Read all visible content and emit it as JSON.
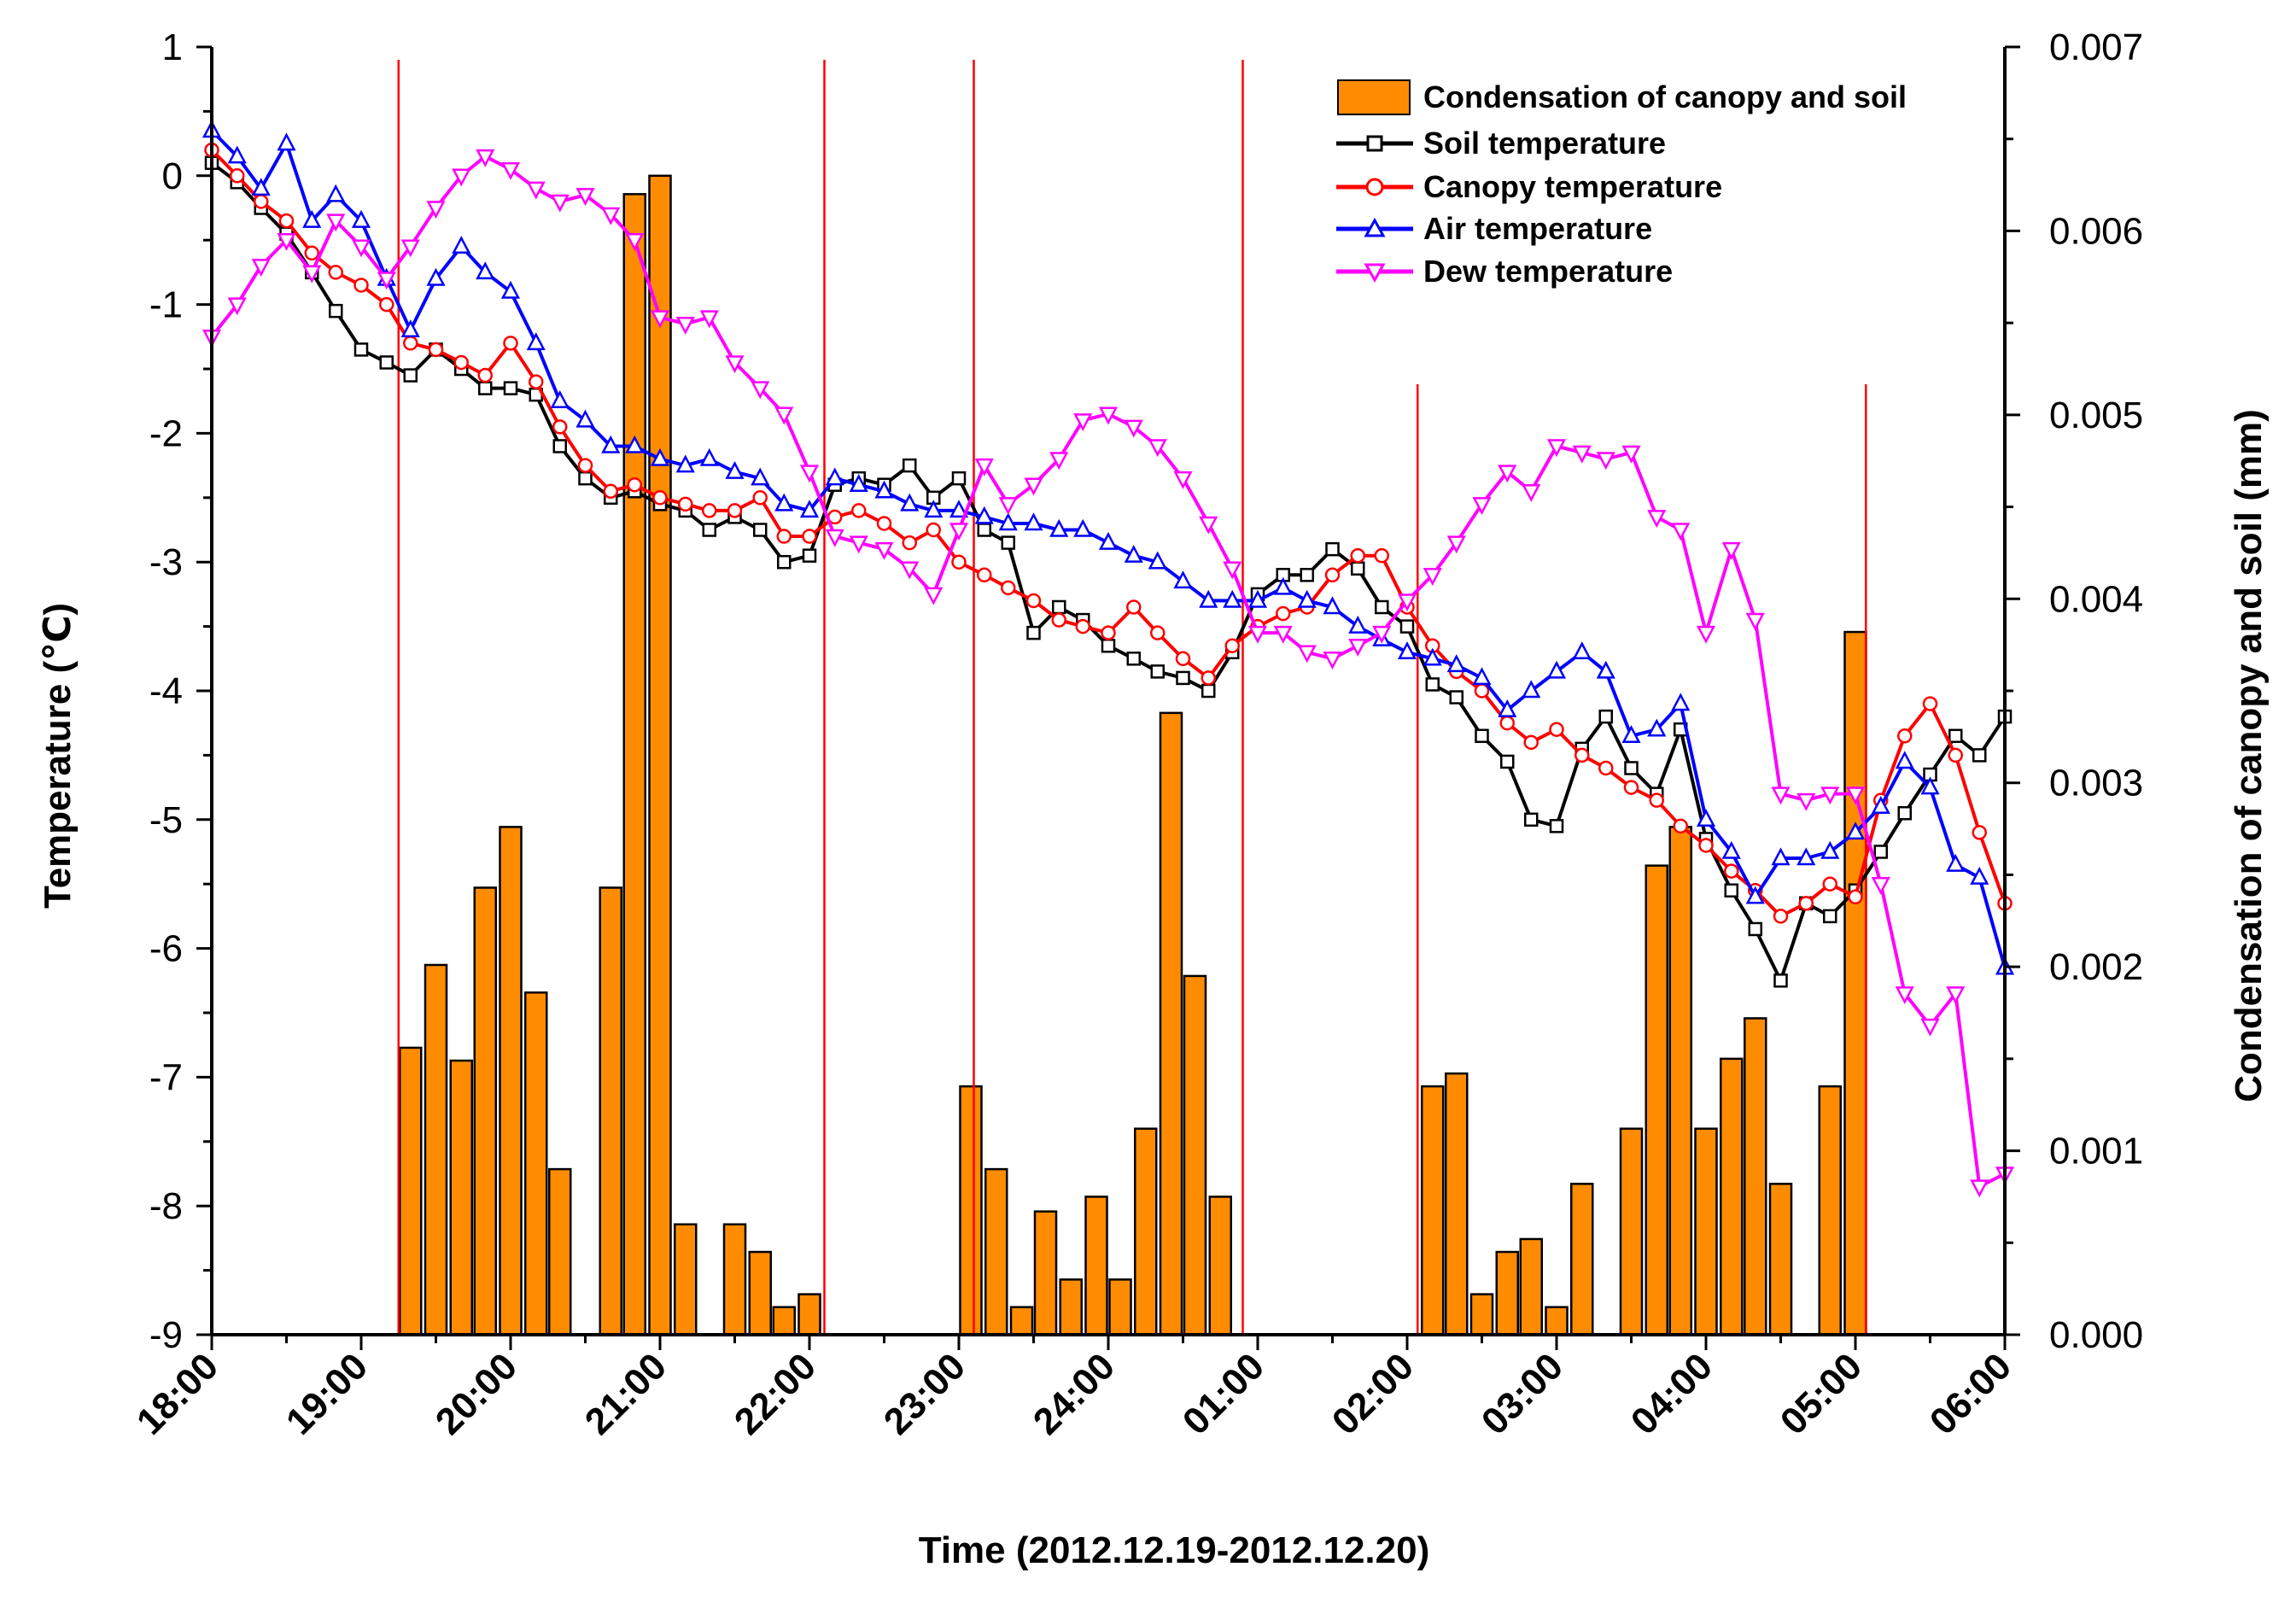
{
  "chart_data": {
    "type": "bar+line",
    "xlabel": "Time (2012.12.19-2012.12.20)",
    "ylabel_left": "Temperature (℃)",
    "ylabel_right": "Condensation of canopy and soil (mm)",
    "x_range_hours": [
      18,
      30
    ],
    "x_ticks": [
      "18:00",
      "19:00",
      "20:00",
      "21:00",
      "22:00",
      "23:00",
      "24:00",
      "01:00",
      "02:00",
      "03:00",
      "04:00",
      "05:00",
      "06:00"
    ],
    "ylim_left": [
      -9,
      1
    ],
    "y_ticks_left": [
      "1",
      "0",
      "-1",
      "-2",
      "-3",
      "-4",
      "-5",
      "-6",
      "-7",
      "-8",
      "-9"
    ],
    "ylim_right": [
      0,
      0.007
    ],
    "y_ticks_right": [
      "0.007",
      "0.006",
      "0.005",
      "0.004",
      "0.003",
      "0.002",
      "0.001",
      "0.000"
    ],
    "vertical_markers_hours": [
      19.25,
      22.1,
      23.1,
      24.9,
      26.07,
      29.07
    ],
    "legend": {
      "position": "top-right",
      "entries": [
        "Condensation of canopy and soil",
        "Soil temperature",
        "Canopy temperature",
        "Air temperature",
        "Dew temperature"
      ]
    },
    "colors": {
      "bar_fill": "#ff8c00",
      "soil": "#000000",
      "canopy": "#ff0000",
      "air": "#0000ff",
      "dew": "#ff00ff",
      "marker_line": "#ff0000"
    },
    "bars": {
      "name": "Condensation of canopy and soil",
      "x": [
        19.33,
        19.5,
        19.67,
        19.83,
        20.0,
        20.17,
        20.33,
        20.67,
        20.83,
        21.0,
        21.17,
        21.5,
        21.67,
        21.83,
        22.0,
        23.08,
        23.25,
        23.42,
        23.58,
        23.75,
        23.92,
        24.08,
        24.25,
        24.42,
        24.58,
        24.75,
        26.17,
        26.33,
        26.5,
        26.67,
        26.83,
        27.0,
        27.17,
        27.5,
        27.67,
        27.83,
        28.0,
        28.17,
        28.33,
        28.5,
        28.83,
        29.0
      ],
      "values": [
        0.00156,
        0.00201,
        0.00149,
        0.00243,
        0.00276,
        0.00186,
        0.0009,
        0.00243,
        0.0062,
        0.0063,
        0.0006,
        0.0006,
        0.00045,
        0.00015,
        0.00022,
        0.00135,
        0.0009,
        0.00015,
        0.00067,
        0.0003,
        0.00075,
        0.0003,
        0.00112,
        0.00338,
        0.00195,
        0.00075,
        0.00135,
        0.00142,
        0.00022,
        0.00045,
        0.00052,
        0.00015,
        0.00082,
        0.00112,
        0.00255,
        0.00276,
        0.00112,
        0.0015,
        0.00172,
        0.00082,
        0.00135,
        0.00382
      ]
    },
    "series": [
      {
        "name": "Soil temperature",
        "x": [
          18.0,
          18.17,
          18.33,
          18.5,
          18.67,
          18.83,
          19.0,
          19.17,
          19.33,
          19.5,
          19.67,
          19.83,
          20.0,
          20.17,
          20.33,
          20.5,
          20.67,
          20.83,
          21.0,
          21.17,
          21.33,
          21.5,
          21.67,
          21.83,
          22.0,
          22.17,
          22.33,
          22.5,
          22.67,
          22.83,
          23.0,
          23.17,
          23.33,
          23.5,
          23.67,
          23.83,
          24.0,
          24.17,
          24.33,
          24.5,
          24.67,
          24.83,
          25.0,
          25.17,
          25.33,
          25.5,
          25.67,
          25.83,
          26.0,
          26.17,
          26.33,
          26.5,
          26.67,
          26.83,
          27.0,
          27.17,
          27.33,
          27.5,
          27.67,
          27.83,
          28.0,
          28.17,
          28.33,
          28.5,
          28.67,
          28.83,
          29.0,
          29.17,
          29.33,
          29.5,
          29.67,
          29.83,
          30.0
        ],
        "values": [
          0.1,
          -0.05,
          -0.25,
          -0.45,
          -0.75,
          -1.05,
          -1.35,
          -1.45,
          -1.55,
          -1.35,
          -1.5,
          -1.65,
          -1.65,
          -1.7,
          -2.1,
          -2.35,
          -2.5,
          -2.45,
          -2.55,
          -2.6,
          -2.75,
          -2.65,
          -2.75,
          -3.0,
          -2.95,
          -2.4,
          -2.35,
          -2.4,
          -2.25,
          -2.5,
          -2.35,
          -2.75,
          -2.85,
          -3.55,
          -3.35,
          -3.45,
          -3.65,
          -3.75,
          -3.85,
          -3.9,
          -4.0,
          -3.7,
          -3.25,
          -3.1,
          -3.1,
          -2.9,
          -3.05,
          -3.35,
          -3.5,
          -3.95,
          -4.05,
          -4.35,
          -4.55,
          -5.0,
          -5.05,
          -4.45,
          -4.2,
          -4.6,
          -4.8,
          -4.3,
          -5.15,
          -5.55,
          -5.85,
          -6.25,
          -5.65,
          -5.75,
          -5.55,
          -5.25,
          -4.95,
          -4.65,
          -4.35,
          -4.5,
          -4.2
        ]
      },
      {
        "name": "Canopy temperature",
        "x": [
          18.0,
          18.17,
          18.33,
          18.5,
          18.67,
          18.83,
          19.0,
          19.17,
          19.33,
          19.5,
          19.67,
          19.83,
          20.0,
          20.17,
          20.33,
          20.5,
          20.67,
          20.83,
          21.0,
          21.17,
          21.33,
          21.5,
          21.67,
          21.83,
          22.0,
          22.17,
          22.33,
          22.5,
          22.67,
          22.83,
          23.0,
          23.17,
          23.33,
          23.5,
          23.67,
          23.83,
          24.0,
          24.17,
          24.33,
          24.5,
          24.67,
          24.83,
          25.0,
          25.17,
          25.33,
          25.5,
          25.67,
          25.83,
          26.0,
          26.17,
          26.33,
          26.5,
          26.67,
          26.83,
          27.0,
          27.17,
          27.33,
          27.5,
          27.67,
          27.83,
          28.0,
          28.17,
          28.33,
          28.5,
          28.67,
          28.83,
          29.0,
          29.17,
          29.33,
          29.5,
          29.67,
          29.83,
          30.0
        ],
        "values": [
          0.2,
          0.0,
          -0.2,
          -0.35,
          -0.6,
          -0.75,
          -0.85,
          -1.0,
          -1.3,
          -1.35,
          -1.45,
          -1.55,
          -1.3,
          -1.6,
          -1.95,
          -2.25,
          -2.45,
          -2.4,
          -2.5,
          -2.55,
          -2.6,
          -2.6,
          -2.5,
          -2.8,
          -2.8,
          -2.65,
          -2.6,
          -2.7,
          -2.85,
          -2.75,
          -3.0,
          -3.1,
          -3.2,
          -3.3,
          -3.45,
          -3.5,
          -3.55,
          -3.35,
          -3.55,
          -3.75,
          -3.9,
          -3.65,
          -3.5,
          -3.4,
          -3.35,
          -3.1,
          -2.95,
          -2.95,
          -3.35,
          -3.65,
          -3.85,
          -4.0,
          -4.25,
          -4.4,
          -4.3,
          -4.5,
          -4.6,
          -4.75,
          -4.85,
          -5.05,
          -5.2,
          -5.4,
          -5.55,
          -5.75,
          -5.65,
          -5.5,
          -5.6,
          -4.85,
          -4.35,
          -4.1,
          -4.5,
          -5.1,
          -5.65
        ]
      },
      {
        "name": "Air temperature",
        "x": [
          18.0,
          18.17,
          18.33,
          18.5,
          18.67,
          18.83,
          19.0,
          19.17,
          19.33,
          19.5,
          19.67,
          19.83,
          20.0,
          20.17,
          20.33,
          20.5,
          20.67,
          20.83,
          21.0,
          21.17,
          21.33,
          21.5,
          21.67,
          21.83,
          22.0,
          22.17,
          22.33,
          22.5,
          22.67,
          22.83,
          23.0,
          23.17,
          23.33,
          23.5,
          23.67,
          23.83,
          24.0,
          24.17,
          24.33,
          24.5,
          24.67,
          24.83,
          25.0,
          25.17,
          25.33,
          25.5,
          25.67,
          25.83,
          26.0,
          26.17,
          26.33,
          26.5,
          26.67,
          26.83,
          27.0,
          27.17,
          27.33,
          27.5,
          27.67,
          27.83,
          28.0,
          28.17,
          28.33,
          28.5,
          28.67,
          28.83,
          29.0,
          29.17,
          29.33,
          29.5,
          29.67,
          29.83,
          30.0
        ],
        "values": [
          0.35,
          0.15,
          -0.1,
          0.25,
          -0.35,
          -0.15,
          -0.35,
          -0.8,
          -1.2,
          -0.8,
          -0.55,
          -0.75,
          -0.9,
          -1.3,
          -1.75,
          -1.9,
          -2.1,
          -2.1,
          -2.2,
          -2.25,
          -2.2,
          -2.3,
          -2.35,
          -2.55,
          -2.6,
          -2.35,
          -2.4,
          -2.45,
          -2.55,
          -2.6,
          -2.6,
          -2.65,
          -2.7,
          -2.7,
          -2.75,
          -2.75,
          -2.85,
          -2.95,
          -3.0,
          -3.15,
          -3.3,
          -3.3,
          -3.3,
          -3.2,
          -3.3,
          -3.35,
          -3.5,
          -3.6,
          -3.7,
          -3.75,
          -3.8,
          -3.9,
          -4.15,
          -4.0,
          -3.85,
          -3.7,
          -3.85,
          -4.35,
          -4.3,
          -4.1,
          -5.0,
          -5.25,
          -5.6,
          -5.3,
          -5.3,
          -5.25,
          -5.1,
          -4.9,
          -4.55,
          -4.75,
          -5.35,
          -5.45,
          -6.15
        ]
      },
      {
        "name": "Dew temperature",
        "x": [
          18.0,
          18.17,
          18.33,
          18.5,
          18.67,
          18.83,
          19.0,
          19.17,
          19.33,
          19.5,
          19.67,
          19.83,
          20.0,
          20.17,
          20.33,
          20.5,
          20.67,
          20.83,
          21.0,
          21.17,
          21.33,
          21.5,
          21.67,
          21.83,
          22.0,
          22.17,
          22.33,
          22.5,
          22.67,
          22.83,
          23.0,
          23.17,
          23.33,
          23.5,
          23.67,
          23.83,
          24.0,
          24.17,
          24.33,
          24.5,
          24.67,
          24.83,
          25.0,
          25.17,
          25.33,
          25.5,
          25.67,
          25.83,
          26.0,
          26.17,
          26.33,
          26.5,
          26.67,
          26.83,
          27.0,
          27.17,
          27.33,
          27.5,
          27.67,
          27.83,
          28.0,
          28.17,
          28.33,
          28.5,
          28.67,
          28.83,
          29.0,
          29.17,
          29.33,
          29.5,
          29.67,
          29.83,
          30.0
        ],
        "values": [
          -1.25,
          -1.0,
          -0.7,
          -0.5,
          -0.75,
          -0.35,
          -0.55,
          -0.8,
          -0.55,
          -0.25,
          0.0,
          0.15,
          0.05,
          -0.1,
          -0.2,
          -0.15,
          -0.3,
          -0.5,
          -1.1,
          -1.15,
          -1.1,
          -1.45,
          -1.65,
          -1.85,
          -2.3,
          -2.8,
          -2.85,
          -2.9,
          -3.05,
          -3.25,
          -2.75,
          -2.25,
          -2.55,
          -2.4,
          -2.2,
          -1.9,
          -1.85,
          -1.95,
          -2.1,
          -2.35,
          -2.7,
          -3.05,
          -3.55,
          -3.55,
          -3.7,
          -3.75,
          -3.65,
          -3.55,
          -3.3,
          -3.1,
          -2.85,
          -2.55,
          -2.3,
          -2.45,
          -2.1,
          -2.15,
          -2.2,
          -2.15,
          -2.65,
          -2.75,
          -3.55,
          -2.9,
          -3.45,
          -4.8,
          -4.85,
          -4.8,
          -4.8,
          -5.5,
          -6.35,
          -6.6,
          -6.35,
          -7.85,
          -7.75
        ]
      }
    ]
  }
}
